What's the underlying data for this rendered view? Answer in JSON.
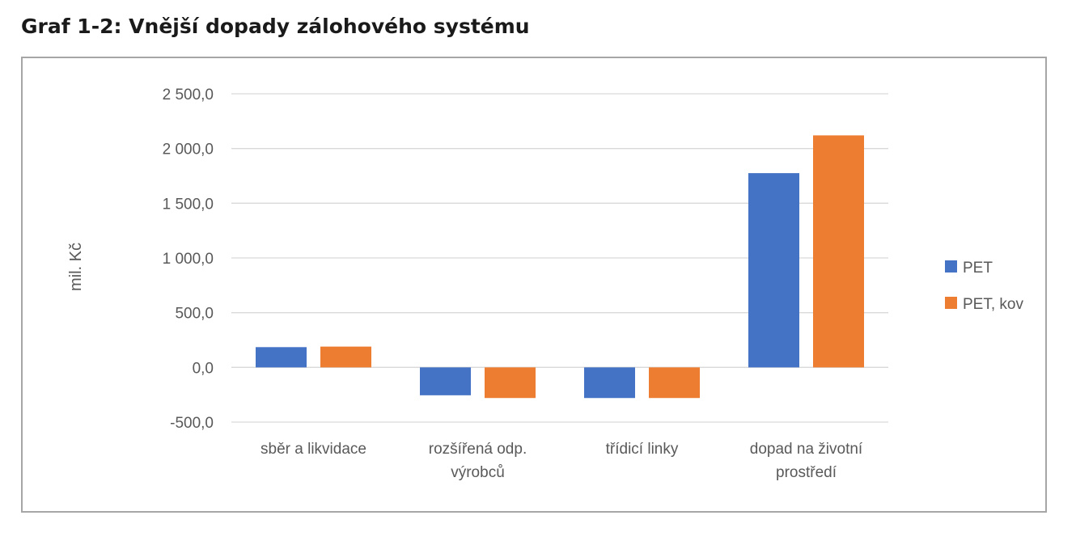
{
  "page_title": "Graf 1-2: Vnější dopady zálohového systému",
  "chart_data": {
    "type": "bar",
    "title": "",
    "xlabel": "",
    "ylabel": "mil. Kč",
    "ylim": [
      -500,
      2500
    ],
    "yticks": [
      2500,
      2000,
      1500,
      1000,
      500,
      0,
      -500
    ],
    "ytick_labels": [
      "2 500,0",
      "2 000,0",
      "1 500,0",
      "1 000,0",
      "500,0",
      "0,0",
      "-500,0"
    ],
    "categories": [
      [
        "sběr a likvidace"
      ],
      [
        "rozšířená odp.",
        "výrobců"
      ],
      [
        "třídicí linky"
      ],
      [
        "dopad na životní",
        "prostředí"
      ]
    ],
    "series": [
      {
        "name": "PET",
        "color": "#4472c4",
        "values": [
          185,
          -255,
          -280,
          1775
        ]
      },
      {
        "name": "PET, kov",
        "color": "#ed7d31",
        "values": [
          190,
          -280,
          -280,
          2120
        ]
      }
    ],
    "grid": true,
    "legend_position": "right"
  }
}
